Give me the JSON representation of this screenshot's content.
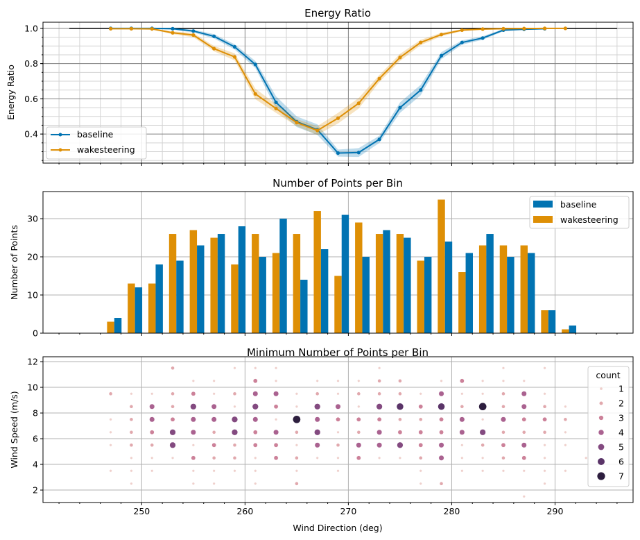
{
  "chart_data": [
    {
      "type": "line",
      "title": "Energy Ratio",
      "xlabel": "",
      "ylabel": "Energy Ratio",
      "xlim": [
        240.45,
        297.55
      ],
      "ylim": [
        0.235,
        1.035
      ],
      "yticks": [
        0.4,
        0.6,
        0.8,
        1.0
      ],
      "ytick_labels": [
        "0.4",
        "0.6",
        "0.8",
        "1.0"
      ],
      "grid": "major and minor",
      "legend_position": "lower-left",
      "reference_line": {
        "y": 1.0,
        "x_range": [
          243,
          296
        ],
        "color": "#000000"
      },
      "x": [
        247,
        249,
        251,
        253,
        255,
        257,
        259,
        261,
        263,
        265,
        267,
        269,
        271,
        273,
        275,
        277,
        279,
        281,
        283,
        285,
        287,
        289,
        291
      ],
      "series": [
        {
          "name": "baseline",
          "color": "#0173b2",
          "x": [
            247,
            249,
            251,
            253,
            255,
            257,
            259,
            261,
            263,
            265,
            267,
            269,
            271,
            273,
            275,
            277,
            279,
            281,
            283,
            285,
            287,
            289
          ],
          "values": [
            1.0,
            1.0,
            1.0,
            0.998,
            0.985,
            0.955,
            0.895,
            0.795,
            0.58,
            0.47,
            0.425,
            0.292,
            0.295,
            0.37,
            0.55,
            0.65,
            0.845,
            0.92,
            0.945,
            0.99,
            0.995,
            0.998
          ],
          "ci_halfwidth": [
            0.003,
            0.003,
            0.004,
            0.005,
            0.008,
            0.012,
            0.015,
            0.02,
            0.035,
            0.03,
            0.03,
            0.02,
            0.025,
            0.02,
            0.03,
            0.03,
            0.02,
            0.012,
            0.01,
            0.006,
            0.004,
            0.003
          ]
        },
        {
          "name": "wakesteering",
          "color": "#de8f05",
          "x": [
            247,
            249,
            251,
            253,
            255,
            257,
            259,
            261,
            263,
            265,
            267,
            269,
            271,
            273,
            275,
            277,
            279,
            281,
            283,
            285,
            287,
            289,
            291
          ],
          "values": [
            0.998,
            0.998,
            0.997,
            0.975,
            0.962,
            0.885,
            0.838,
            0.628,
            0.545,
            0.465,
            0.42,
            0.49,
            0.575,
            0.715,
            0.835,
            0.92,
            0.965,
            0.99,
            0.996,
            0.998,
            0.999,
            1.0,
            1.0
          ],
          "ci_halfwidth": [
            0.003,
            0.003,
            0.004,
            0.008,
            0.012,
            0.015,
            0.02,
            0.03,
            0.025,
            0.02,
            0.025,
            0.03,
            0.03,
            0.02,
            0.02,
            0.015,
            0.01,
            0.006,
            0.004,
            0.003,
            0.003,
            0.002,
            0.002
          ]
        }
      ]
    },
    {
      "type": "bar",
      "title": "Number of Points per Bin",
      "xlabel": "",
      "ylabel": "Number of Points",
      "xlim": [
        240.45,
        297.55
      ],
      "ylim": [
        0,
        37.1
      ],
      "yticks": [
        0,
        10,
        20,
        30
      ],
      "ytick_labels": [
        "0",
        "10",
        "20",
        "30"
      ],
      "grid": "major",
      "legend_position": "top-right",
      "categories": [
        247,
        249,
        251,
        253,
        255,
        257,
        259,
        261,
        263,
        265,
        267,
        269,
        271,
        273,
        275,
        277,
        279,
        281,
        283,
        285,
        287,
        289,
        291
      ],
      "series": [
        {
          "name": "baseline",
          "color": "#0173b2",
          "values": [
            4,
            12,
            18,
            19,
            23,
            26,
            28,
            20,
            30,
            14,
            22,
            31,
            20,
            27,
            25,
            20,
            24,
            21,
            26,
            20,
            21,
            6,
            2
          ]
        },
        {
          "name": "wakesteering",
          "color": "#de8f05",
          "values": [
            3,
            13,
            13,
            26,
            27,
            25,
            18,
            26,
            21,
            26,
            32,
            15,
            29,
            26,
            26,
            19,
            35,
            16,
            23,
            23,
            23,
            6,
            1
          ]
        }
      ]
    },
    {
      "type": "scatter",
      "title": "Minimum Number of Points per Bin",
      "xlabel": "Wind Direction (deg)",
      "ylabel": "Wind Speed (m/s)",
      "xlim": [
        240.45,
        297.55
      ],
      "ylim": [
        1.03,
        12.38
      ],
      "xticks": [
        250,
        260,
        270,
        280,
        290
      ],
      "xtick_labels": [
        "250",
        "260",
        "270",
        "280",
        "290"
      ],
      "yticks": [
        2,
        4,
        6,
        8,
        10,
        12
      ],
      "ytick_labels": [
        "2",
        "4",
        "6",
        "8",
        "10",
        "12"
      ],
      "grid": "major",
      "legend_position": "right",
      "legend_title": "count",
      "legend_entries": [
        "1",
        "2",
        "3",
        "4",
        "5",
        "6",
        "7"
      ],
      "count_colors": [
        "#efd0cc",
        "#e1a8ad",
        "#cc8199",
        "#aa6290",
        "#834a80",
        "#5a3468",
        "#2d1e3e"
      ],
      "rows": [
        {
          "ws": 11.5,
          "points": [
            [
              253,
              2
            ],
            [
              259,
              1
            ],
            [
              261,
              1
            ],
            [
              263,
              1
            ],
            [
              273,
              1
            ],
            [
              285,
              1
            ],
            [
              289,
              1
            ]
          ]
        },
        {
          "ws": 10.5,
          "points": [
            [
              255,
              1
            ],
            [
              257,
              1
            ],
            [
              261,
              3
            ],
            [
              263,
              1
            ],
            [
              267,
              1
            ],
            [
              269,
              1
            ],
            [
              271,
              1
            ],
            [
              273,
              2
            ],
            [
              275,
              2
            ],
            [
              279,
              1
            ],
            [
              281,
              3
            ],
            [
              283,
              1
            ],
            [
              285,
              1
            ],
            [
              287,
              1
            ]
          ]
        },
        {
          "ws": 9.5,
          "points": [
            [
              247,
              2
            ],
            [
              249,
              1
            ],
            [
              251,
              1
            ],
            [
              253,
              2
            ],
            [
              255,
              3
            ],
            [
              257,
              1
            ],
            [
              259,
              2
            ],
            [
              261,
              4
            ],
            [
              263,
              4
            ],
            [
              265,
              1
            ],
            [
              267,
              2
            ],
            [
              269,
              1
            ],
            [
              271,
              2
            ],
            [
              273,
              2
            ],
            [
              275,
              2
            ],
            [
              277,
              1
            ],
            [
              279,
              4
            ],
            [
              281,
              1
            ],
            [
              283,
              1
            ],
            [
              285,
              2
            ],
            [
              287,
              4
            ],
            [
              289,
              1
            ]
          ]
        },
        {
          "ws": 8.5,
          "points": [
            [
              249,
              2
            ],
            [
              251,
              4
            ],
            [
              253,
              2
            ],
            [
              255,
              5
            ],
            [
              257,
              4
            ],
            [
              259,
              1
            ],
            [
              261,
              5
            ],
            [
              263,
              3
            ],
            [
              265,
              1
            ],
            [
              267,
              5
            ],
            [
              269,
              4
            ],
            [
              271,
              1
            ],
            [
              273,
              5
            ],
            [
              275,
              6
            ],
            [
              277,
              3
            ],
            [
              279,
              6
            ],
            [
              281,
              2
            ],
            [
              283,
              7
            ],
            [
              285,
              2
            ],
            [
              287,
              4
            ],
            [
              289,
              2
            ],
            [
              291,
              1
            ]
          ]
        },
        {
          "ws": 7.5,
          "points": [
            [
              247,
              1
            ],
            [
              249,
              2
            ],
            [
              251,
              4
            ],
            [
              253,
              3
            ],
            [
              255,
              4
            ],
            [
              257,
              4
            ],
            [
              259,
              5
            ],
            [
              261,
              4
            ],
            [
              263,
              1
            ],
            [
              265,
              7
            ],
            [
              267,
              4
            ],
            [
              269,
              3
            ],
            [
              271,
              3
            ],
            [
              273,
              3
            ],
            [
              275,
              2
            ],
            [
              277,
              2
            ],
            [
              279,
              3
            ],
            [
              281,
              4
            ],
            [
              283,
              1
            ],
            [
              285,
              4
            ],
            [
              287,
              3
            ],
            [
              289,
              3
            ],
            [
              291,
              2
            ]
          ]
        },
        {
          "ws": 6.5,
          "points": [
            [
              247,
              1
            ],
            [
              249,
              2
            ],
            [
              251,
              3
            ],
            [
              253,
              5
            ],
            [
              255,
              4
            ],
            [
              257,
              2
            ],
            [
              259,
              5
            ],
            [
              261,
              3
            ],
            [
              263,
              4
            ],
            [
              265,
              2
            ],
            [
              267,
              5
            ],
            [
              269,
              1
            ],
            [
              271,
              2
            ],
            [
              273,
              4
            ],
            [
              275,
              3
            ],
            [
              277,
              3
            ],
            [
              279,
              3
            ],
            [
              281,
              4
            ],
            [
              283,
              5
            ],
            [
              285,
              2
            ],
            [
              287,
              2
            ],
            [
              289,
              2
            ],
            [
              291,
              1
            ]
          ]
        },
        {
          "ws": 5.5,
          "points": [
            [
              247,
              1
            ],
            [
              249,
              2
            ],
            [
              251,
              2
            ],
            [
              253,
              5
            ],
            [
              255,
              1
            ],
            [
              257,
              3
            ],
            [
              259,
              2
            ],
            [
              261,
              3
            ],
            [
              263,
              3
            ],
            [
              265,
              1
            ],
            [
              267,
              4
            ],
            [
              269,
              2
            ],
            [
              271,
              4
            ],
            [
              273,
              4
            ],
            [
              275,
              5
            ],
            [
              277,
              3
            ],
            [
              279,
              4
            ],
            [
              281,
              1
            ],
            [
              283,
              2
            ],
            [
              285,
              3
            ],
            [
              287,
              4
            ],
            [
              289,
              1
            ],
            [
              291,
              1
            ]
          ]
        },
        {
          "ws": 4.5,
          "points": [
            [
              249,
              1
            ],
            [
              251,
              1
            ],
            [
              253,
              1
            ],
            [
              255,
              3
            ],
            [
              257,
              2
            ],
            [
              259,
              2
            ],
            [
              261,
              1
            ],
            [
              263,
              3
            ],
            [
              265,
              2
            ],
            [
              267,
              1
            ],
            [
              269,
              1
            ],
            [
              271,
              3
            ],
            [
              273,
              1
            ],
            [
              275,
              1
            ],
            [
              277,
              2
            ],
            [
              279,
              4
            ],
            [
              281,
              1
            ],
            [
              283,
              1
            ],
            [
              285,
              2
            ],
            [
              287,
              3
            ],
            [
              289,
              1
            ],
            [
              293,
              1
            ]
          ]
        },
        {
          "ws": 3.5,
          "points": [
            [
              247,
              1
            ],
            [
              249,
              1
            ],
            [
              251,
              1
            ],
            [
              255,
              1
            ],
            [
              257,
              1
            ],
            [
              259,
              1
            ],
            [
              261,
              1
            ],
            [
              265,
              1
            ],
            [
              269,
              1
            ],
            [
              277,
              1
            ],
            [
              281,
              1
            ],
            [
              283,
              1
            ],
            [
              285,
              1
            ],
            [
              287,
              1
            ],
            [
              289,
              1
            ],
            [
              291,
              1
            ]
          ]
        },
        {
          "ws": 2.5,
          "points": [
            [
              249,
              1
            ],
            [
              255,
              1
            ],
            [
              257,
              1
            ],
            [
              261,
              1
            ],
            [
              265,
              2
            ],
            [
              277,
              1
            ],
            [
              279,
              2
            ],
            [
              289,
              1
            ]
          ]
        },
        {
          "ws": 1.5,
          "points": [
            [
              287,
              1
            ]
          ]
        }
      ]
    }
  ]
}
